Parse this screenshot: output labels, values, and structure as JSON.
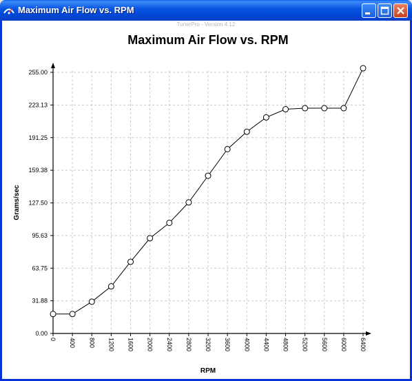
{
  "window": {
    "title": "Maximum Air Flow vs. RPM",
    "icon": "tunerpro-app-icon",
    "controls": [
      "minimize-icon",
      "maximize-icon",
      "close-icon"
    ]
  },
  "watermark": "TunerPro - Version 4.12",
  "colors": {
    "titlebar": "#0a57e3",
    "grid": "#c8c8c8",
    "line": "#000000",
    "background": "#ffffff"
  },
  "chart_data": {
    "type": "line",
    "title": "Maximum Air Flow vs. RPM",
    "xlabel": "RPM",
    "ylabel": "Grams/sec",
    "x": [
      0,
      400,
      800,
      1200,
      1600,
      2000,
      2400,
      2800,
      3200,
      3600,
      4000,
      4400,
      4800,
      5200,
      5600,
      6000,
      6400
    ],
    "y": [
      19,
      19,
      31,
      46,
      70,
      93,
      108,
      128,
      154,
      180,
      197,
      211,
      219,
      220,
      220,
      220,
      259
    ],
    "xticks": [
      "0",
      "400",
      "800",
      "1200",
      "1600",
      "2000",
      "2400",
      "2800",
      "3200",
      "3600",
      "4000",
      "4400",
      "4800",
      "5200",
      "5600",
      "6000",
      "6400"
    ],
    "yticks": [
      "0.00",
      "31.88",
      "63.75",
      "95.63",
      "127.50",
      "159.38",
      "191.25",
      "223.13",
      "255.00"
    ],
    "xlim": [
      0,
      6400
    ],
    "ylim": [
      0,
      255
    ],
    "grid": true,
    "marker": "open-circle"
  }
}
